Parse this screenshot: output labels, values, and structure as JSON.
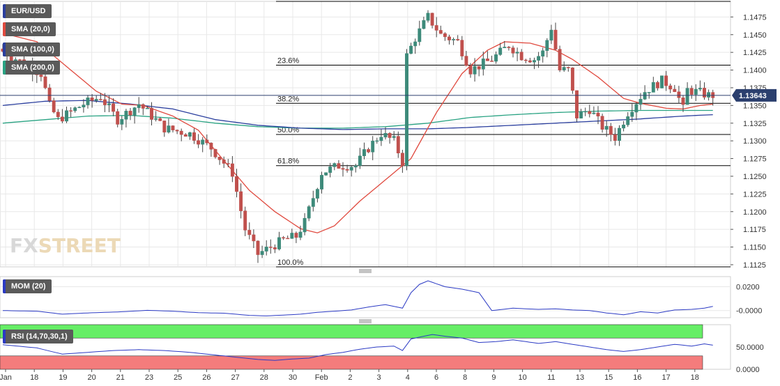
{
  "symbol": "EUR/USD",
  "indicators": {
    "sma20": "SMA (20,0)",
    "sma100": "SMA (100,0)",
    "sma200": "SMA (200,0)",
    "mom": "MOM (20)",
    "rsi": "RSI (14,70,30,1)"
  },
  "watermark": {
    "fx": "FX",
    "street": "STREET"
  },
  "colors": {
    "up": "#3d8a7a",
    "down": "#c0504d",
    "sma20": "#e04a3f",
    "sma100": "#2b3f9e",
    "sma200": "#2aa383",
    "mom_line": "#2b3ac4",
    "rsi_line": "#2b3ac4",
    "rsi_overbought": "#66ee66",
    "rsi_oversold": "#f47c7c",
    "price_tag": "#2b3f6e",
    "fib_line": "#000000",
    "grid": "#e8e8e8"
  },
  "chart_data": {
    "type": "candlestick",
    "price_axis": {
      "ylim": [
        1.1122,
        1.1497
      ],
      "ticks": [
        "1.1125",
        "1.1150",
        "1.1175",
        "1.1200",
        "1.1225",
        "1.1250",
        "1.1275",
        "1.1300",
        "1.1325",
        "1.1350",
        "1.1375",
        "1.1400",
        "1.1425",
        "1.1450",
        "1.1475"
      ]
    },
    "last_price": "1.13643",
    "fibonacci": [
      {
        "label": "23.6%",
        "value": 1.1407
      },
      {
        "label": "38.2%",
        "value": 1.1353
      },
      {
        "label": "50.0%",
        "value": 1.1309
      },
      {
        "label": "61.8%",
        "value": 1.1265
      },
      {
        "label": "100.0%",
        "value": 1.1122
      }
    ],
    "fib_top": 1.1497,
    "x_ticks": [
      "Jan",
      "18",
      "19",
      "20",
      "21",
      "23",
      "25",
      "26",
      "27",
      "28",
      "30",
      "Feb",
      "2",
      "3",
      "4",
      "6",
      "8",
      "9",
      "10",
      "11",
      "13",
      "15",
      "16",
      "17",
      "18"
    ],
    "candles": {
      "step": 6.1,
      "count": 168,
      "anchors": [
        [
          0,
          1.143
        ],
        [
          10,
          1.1395
        ],
        [
          12,
          1.135
        ],
        [
          14,
          1.133
        ],
        [
          20,
          1.1352
        ],
        [
          24,
          1.1362
        ],
        [
          28,
          1.133
        ],
        [
          33,
          1.1352
        ],
        [
          39,
          1.1318
        ],
        [
          45,
          1.131
        ],
        [
          50,
          1.129
        ],
        [
          55,
          1.1255
        ],
        [
          58,
          1.1175
        ],
        [
          61,
          1.114
        ],
        [
          64,
          1.115
        ],
        [
          67,
          1.116
        ],
        [
          70,
          1.1165
        ],
        [
          72,
          1.1185
        ],
        [
          76,
          1.1255
        ],
        [
          80,
          1.1265
        ],
        [
          84,
          1.1265
        ],
        [
          87,
          1.129
        ],
        [
          90,
          1.131
        ],
        [
          93,
          1.13
        ],
        [
          95,
          1.127
        ],
        [
          96,
          1.142
        ],
        [
          98,
          1.1445
        ],
        [
          101,
          1.1475
        ],
        [
          104,
          1.145
        ],
        [
          108,
          1.144
        ],
        [
          111,
          1.14
        ],
        [
          116,
          1.1415
        ],
        [
          120,
          1.1435
        ],
        [
          123,
          1.142
        ],
        [
          126,
          1.1415
        ],
        [
          128,
          1.1425
        ],
        [
          130,
          1.146
        ],
        [
          132,
          1.14
        ],
        [
          134,
          1.14
        ],
        [
          136,
          1.1335
        ],
        [
          139,
          1.1345
        ],
        [
          142,
          1.132
        ],
        [
          145,
          1.1305
        ],
        [
          148,
          1.134
        ],
        [
          152,
          1.137
        ],
        [
          156,
          1.1385
        ],
        [
          159,
          1.1375
        ],
        [
          161,
          1.1345
        ],
        [
          162,
          1.1372
        ],
        [
          165,
          1.1368
        ],
        [
          167,
          1.13643
        ]
      ]
    },
    "sma20": [
      [
        0,
        1.1452
      ],
      [
        8,
        1.144
      ],
      [
        14,
        1.141
      ],
      [
        22,
        1.137
      ],
      [
        28,
        1.1352
      ],
      [
        33,
        1.135
      ],
      [
        40,
        1.1335
      ],
      [
        46,
        1.1315
      ],
      [
        52,
        1.1272
      ],
      [
        58,
        1.123
      ],
      [
        64,
        1.12
      ],
      [
        70,
        1.1176
      ],
      [
        74,
        1.117
      ],
      [
        78,
        1.118
      ],
      [
        84,
        1.1215
      ],
      [
        90,
        1.1245
      ],
      [
        96,
        1.1275
      ],
      [
        102,
        1.134
      ],
      [
        108,
        1.1395
      ],
      [
        114,
        1.1428
      ],
      [
        118,
        1.144
      ],
      [
        124,
        1.1438
      ],
      [
        130,
        1.1428
      ],
      [
        134,
        1.1415
      ],
      [
        140,
        1.139
      ],
      [
        146,
        1.136
      ],
      [
        150,
        1.1353
      ],
      [
        156,
        1.1346
      ],
      [
        160,
        1.1345
      ],
      [
        164,
        1.135
      ],
      [
        167,
        1.1352
      ]
    ],
    "sma100": [
      [
        0,
        1.135
      ],
      [
        10,
        1.1356
      ],
      [
        20,
        1.1357
      ],
      [
        30,
        1.1352
      ],
      [
        40,
        1.1345
      ],
      [
        50,
        1.133
      ],
      [
        60,
        1.1322
      ],
      [
        70,
        1.1318
      ],
      [
        80,
        1.1316
      ],
      [
        90,
        1.1317
      ],
      [
        100,
        1.1317
      ],
      [
        110,
        1.1319
      ],
      [
        120,
        1.1322
      ],
      [
        130,
        1.1325
      ],
      [
        140,
        1.1328
      ],
      [
        150,
        1.1331
      ],
      [
        160,
        1.1335
      ],
      [
        167,
        1.1337
      ]
    ],
    "sma200": [
      [
        0,
        1.1325
      ],
      [
        10,
        1.133
      ],
      [
        20,
        1.1335
      ],
      [
        30,
        1.1336
      ],
      [
        40,
        1.1332
      ],
      [
        50,
        1.1325
      ],
      [
        60,
        1.132
      ],
      [
        70,
        1.1318
      ],
      [
        80,
        1.1318
      ],
      [
        90,
        1.132
      ],
      [
        100,
        1.1325
      ],
      [
        110,
        1.1333
      ],
      [
        120,
        1.1337
      ],
      [
        130,
        1.134
      ],
      [
        140,
        1.1342
      ],
      [
        150,
        1.1343
      ],
      [
        160,
        1.1343
      ],
      [
        167,
        1.1343
      ]
    ],
    "mom": {
      "ticks": [
        "0.0200",
        "-0.0000"
      ],
      "ylim": [
        -0.006,
        0.0285
      ],
      "line": [
        [
          0,
          -0.0
        ],
        [
          8,
          -0.0005
        ],
        [
          14,
          -0.003
        ],
        [
          20,
          -0.002
        ],
        [
          28,
          -0.001
        ],
        [
          34,
          0.0002
        ],
        [
          40,
          -0.0005
        ],
        [
          46,
          -0.0018
        ],
        [
          52,
          -0.0022
        ],
        [
          58,
          -0.004
        ],
        [
          62,
          -0.0045
        ],
        [
          66,
          -0.0038
        ],
        [
          70,
          -0.003
        ],
        [
          74,
          -0.0015
        ],
        [
          78,
          -0.0005
        ],
        [
          82,
          0.0005
        ],
        [
          86,
          0.003
        ],
        [
          90,
          0.005
        ],
        [
          94,
          0.002
        ],
        [
          96,
          0.015
        ],
        [
          98,
          0.022
        ],
        [
          100,
          0.025
        ],
        [
          104,
          0.02
        ],
        [
          108,
          0.018
        ],
        [
          112,
          0.015
        ],
        [
          115,
          -0.0
        ],
        [
          120,
          0.002
        ],
        [
          126,
          0.001
        ],
        [
          130,
          0.0015
        ],
        [
          134,
          0.0005
        ],
        [
          138,
          0.0
        ],
        [
          142,
          -0.002
        ],
        [
          146,
          -0.0035
        ],
        [
          150,
          -0.001
        ],
        [
          154,
          -0.002
        ],
        [
          158,
          0.0005
        ],
        [
          162,
          0.001
        ],
        [
          165,
          0.002
        ],
        [
          167,
          0.0035
        ]
      ]
    },
    "rsi": {
      "ticks": [
        "50.0000",
        "0.0000"
      ],
      "ylim": [
        0,
        100
      ],
      "overbought": 70,
      "oversold": 30,
      "line": [
        [
          0,
          55
        ],
        [
          8,
          48
        ],
        [
          14,
          34
        ],
        [
          20,
          38
        ],
        [
          26,
          42
        ],
        [
          32,
          44
        ],
        [
          38,
          42
        ],
        [
          44,
          38
        ],
        [
          50,
          32
        ],
        [
          56,
          26
        ],
        [
          60,
          22
        ],
        [
          64,
          20
        ],
        [
          68,
          23
        ],
        [
          72,
          25
        ],
        [
          76,
          33
        ],
        [
          80,
          38
        ],
        [
          84,
          45
        ],
        [
          88,
          50
        ],
        [
          92,
          52
        ],
        [
          94,
          42
        ],
        [
          96,
          68
        ],
        [
          98,
          72
        ],
        [
          101,
          78
        ],
        [
          104,
          74
        ],
        [
          108,
          70
        ],
        [
          112,
          60
        ],
        [
          116,
          62
        ],
        [
          120,
          66
        ],
        [
          126,
          58
        ],
        [
          130,
          62
        ],
        [
          134,
          56
        ],
        [
          138,
          50
        ],
        [
          142,
          44
        ],
        [
          146,
          40
        ],
        [
          150,
          44
        ],
        [
          154,
          50
        ],
        [
          158,
          56
        ],
        [
          162,
          52
        ],
        [
          165,
          57
        ],
        [
          167,
          54
        ]
      ]
    }
  }
}
